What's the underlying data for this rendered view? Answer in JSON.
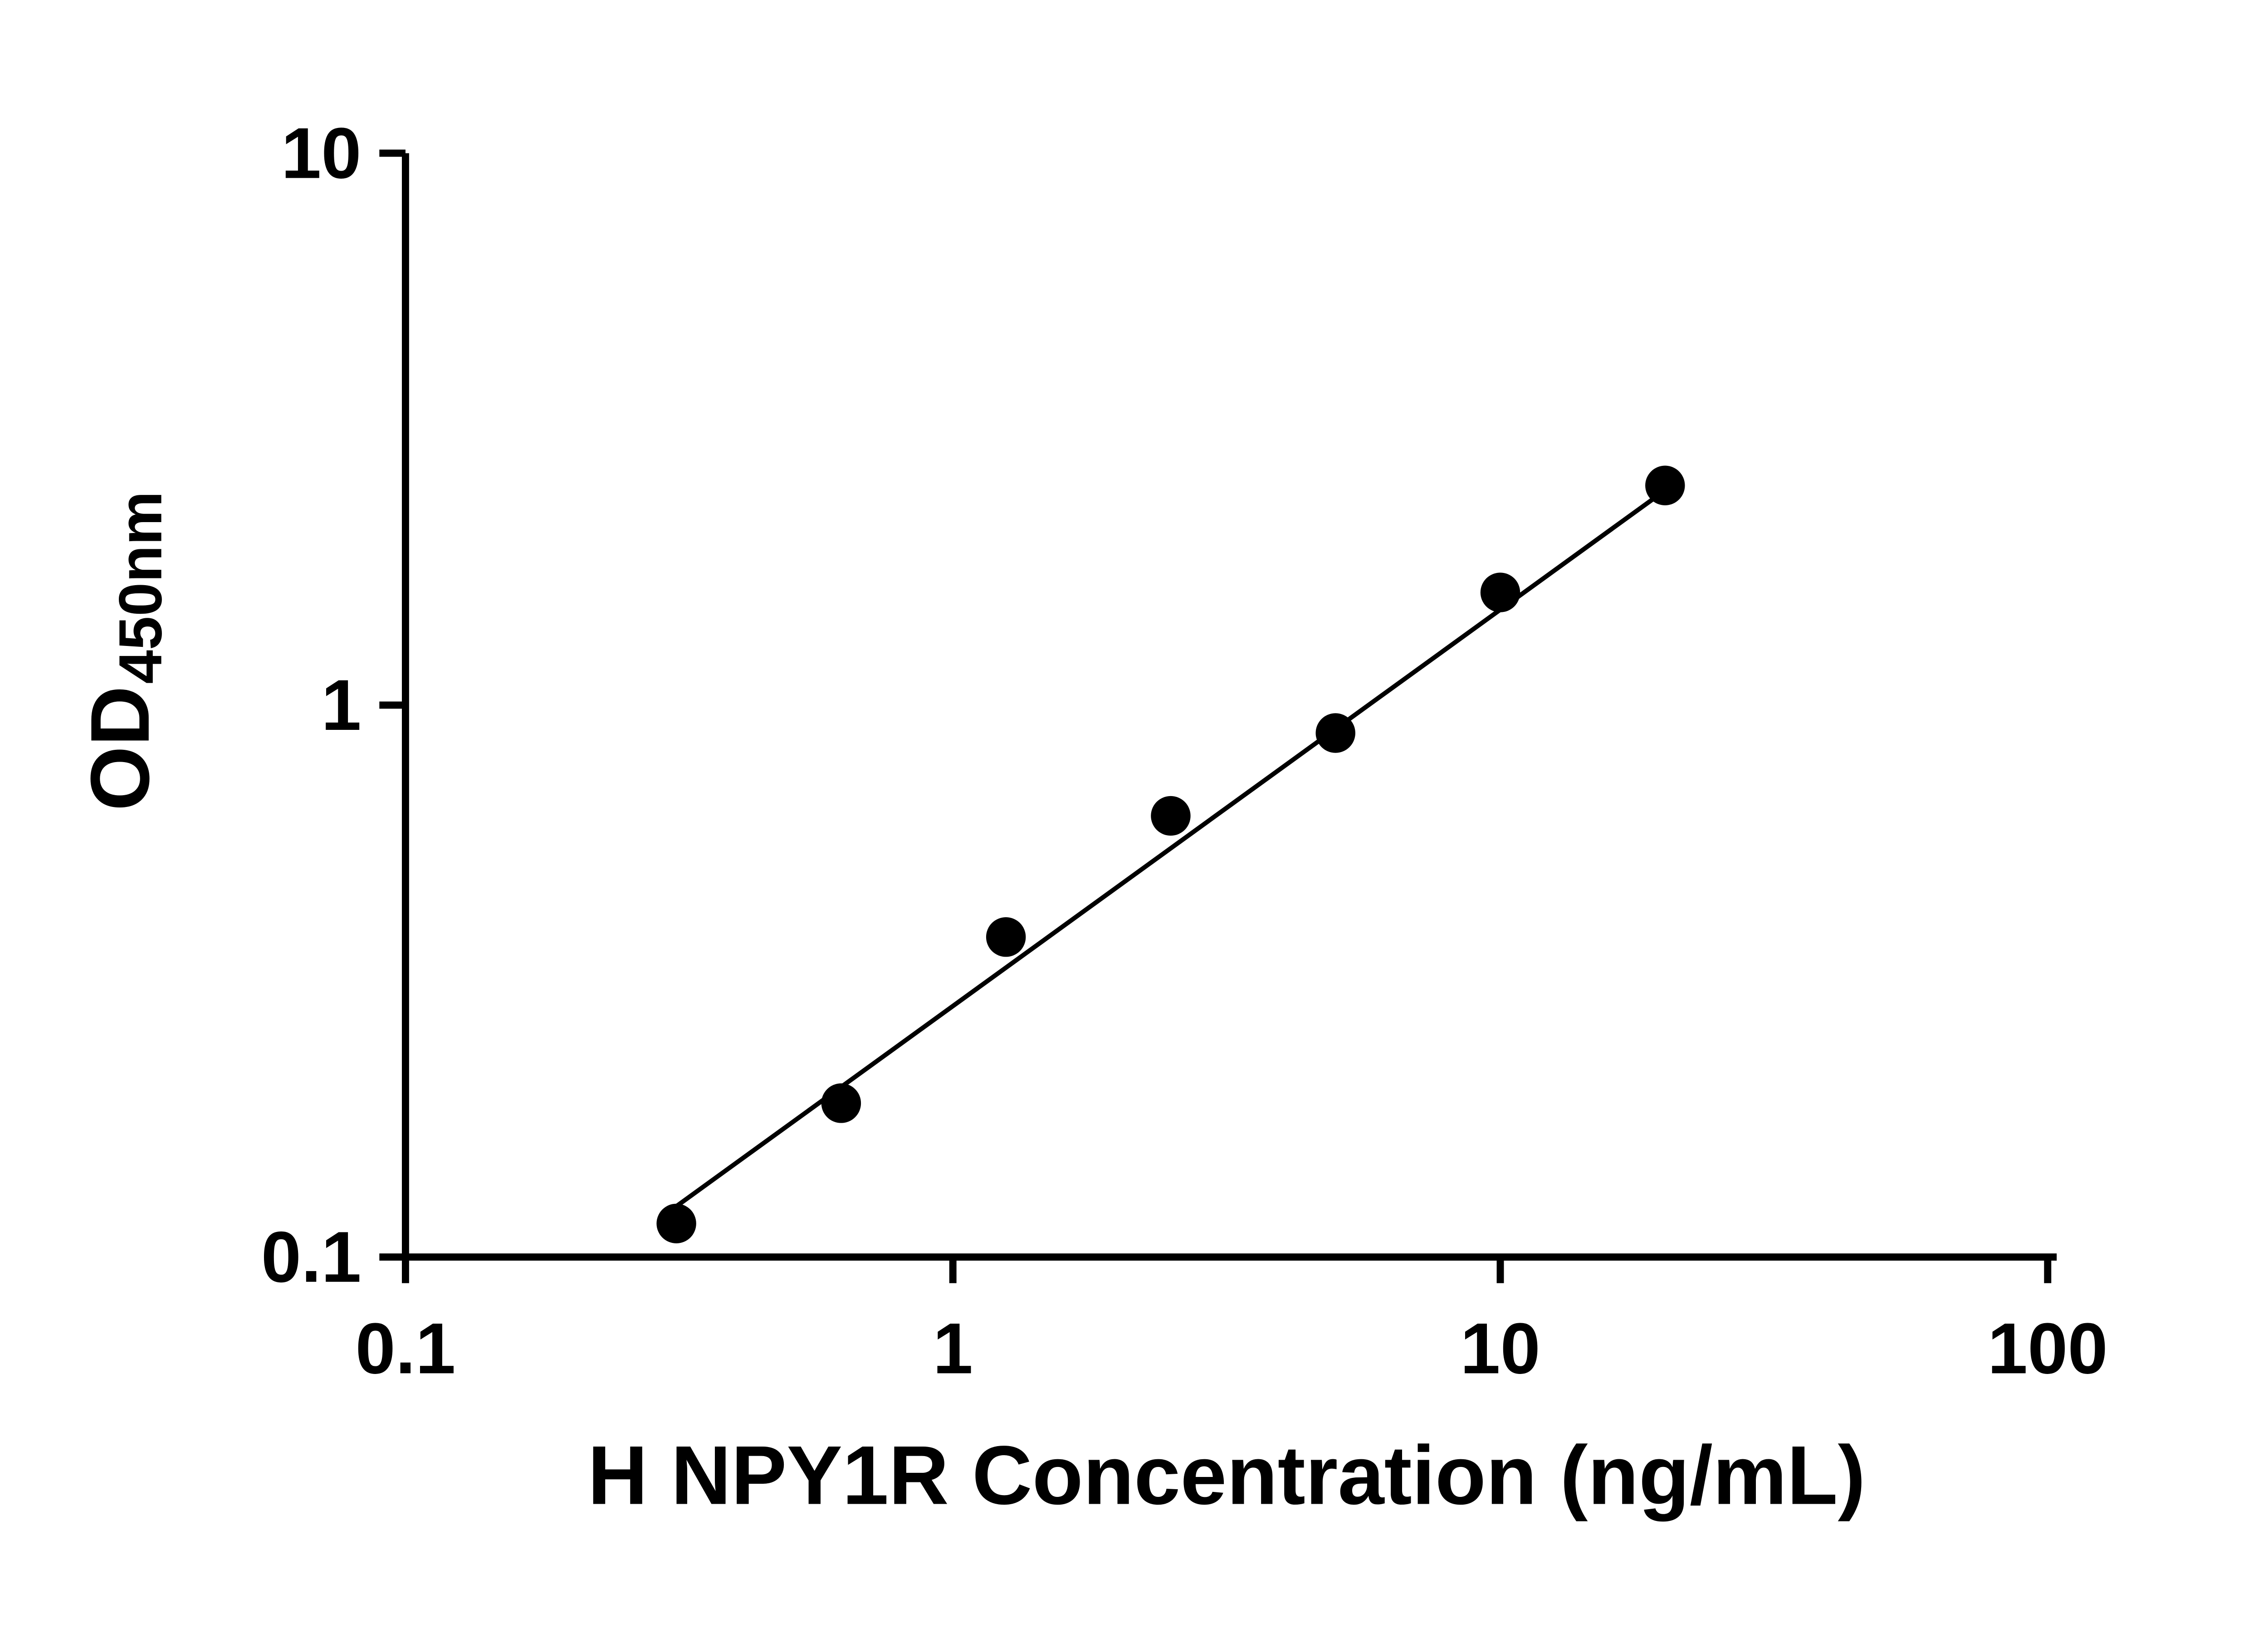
{
  "chart_data": {
    "type": "scatter",
    "title": "",
    "xlabel": "H NPY1R Concentration (ng/mL)",
    "ylabel_main": "OD",
    "ylabel_sub": "450nm",
    "x_scale": "log",
    "y_scale": "log",
    "xlim": [
      0.1,
      100
    ],
    "ylim": [
      0.1,
      10
    ],
    "x_ticks": [
      0.1,
      1,
      10,
      100
    ],
    "x_tick_labels": [
      "0.1",
      "1",
      "10",
      "100"
    ],
    "y_ticks": [
      0.1,
      1,
      10
    ],
    "y_tick_labels": [
      "0.1",
      "1",
      "10"
    ],
    "grid": false,
    "legend": "none",
    "points": [
      {
        "x": 0.3125,
        "y": 0.115
      },
      {
        "x": 0.625,
        "y": 0.19
      },
      {
        "x": 1.25,
        "y": 0.38
      },
      {
        "x": 2.5,
        "y": 0.63
      },
      {
        "x": 5,
        "y": 0.89
      },
      {
        "x": 10,
        "y": 1.6
      },
      {
        "x": 20,
        "y": 2.5
      }
    ],
    "trend_line": {
      "x1": 0.3,
      "y1": 0.12,
      "x2": 20,
      "y2": 2.45
    },
    "marker_color": "#000000",
    "line_color": "#000000",
    "axis_color": "#000000",
    "background": "#ffffff"
  }
}
